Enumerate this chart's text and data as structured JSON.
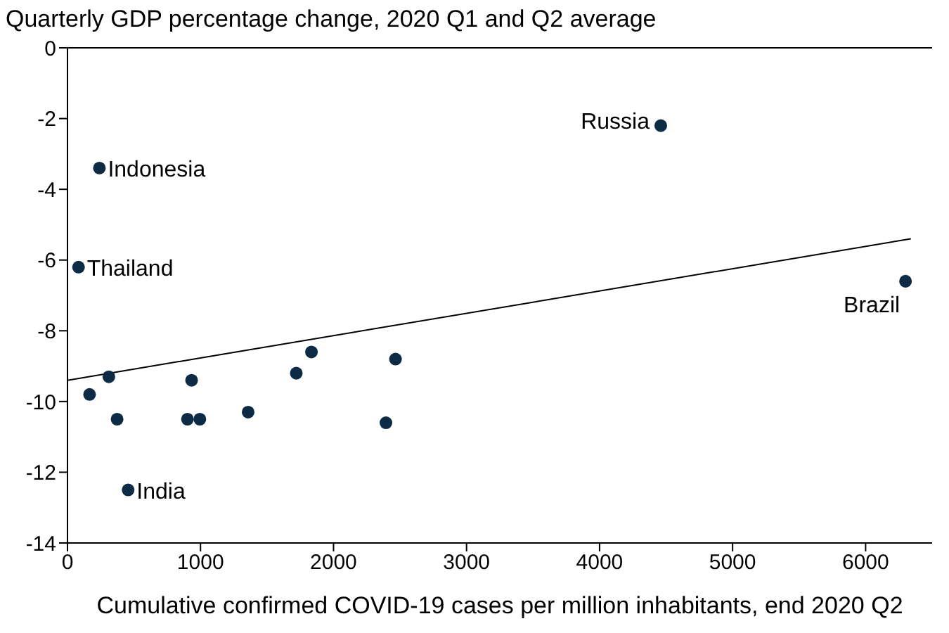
{
  "chart_data": {
    "type": "scatter",
    "title": "Quarterly GDP percentage change, 2020 Q1 and Q2 average",
    "xlabel": "Cumulative confirmed COVID-19 cases per million inhabitants, end 2020 Q2",
    "series": [
      {
        "color": "#0d2b45",
        "marker": "circle",
        "x": [
          4460,
          240,
          83,
          6300,
          456,
          166,
          311,
          373,
          902,
          933,
          995,
          1358,
          1720,
          1834,
          2394,
          2466
        ],
        "values": [
          -2.2,
          -3.4,
          -6.2,
          -6.6,
          -12.5,
          -9.8,
          -9.3,
          -10.5,
          -10.5,
          -9.4,
          -10.5,
          -10.3,
          -9.2,
          -8.6,
          -10.6,
          -8.8
        ]
      },
      {
        "type": "line",
        "marker": "none",
        "color": "#000000",
        "x": [
          0,
          6340
        ],
        "values": [
          -9.4,
          -5.4
        ]
      }
    ],
    "annotations": [
      {
        "text": "Russia",
        "x": 4460,
        "y": -2.2
      },
      {
        "text": "Indonesia",
        "x": 240,
        "y": -3.4
      },
      {
        "text": "Thailand",
        "x": 83,
        "y": -6.2
      },
      {
        "text": "Brazil",
        "x": 6300,
        "y": -6.6
      },
      {
        "text": "India",
        "x": 456,
        "y": -12.5
      }
    ],
    "xlim": [
      0,
      6500
    ],
    "xticks": [
      0,
      1000,
      2000,
      3000,
      4000,
      5000,
      6000
    ],
    "ylim": [
      -14,
      0
    ],
    "yticks": [
      -14,
      -12,
      -10,
      -8,
      -6,
      -4,
      -2,
      0
    ],
    "ref_lines": [
      {
        "axis": "y",
        "value": 0,
        "color": "#000000"
      }
    ]
  }
}
